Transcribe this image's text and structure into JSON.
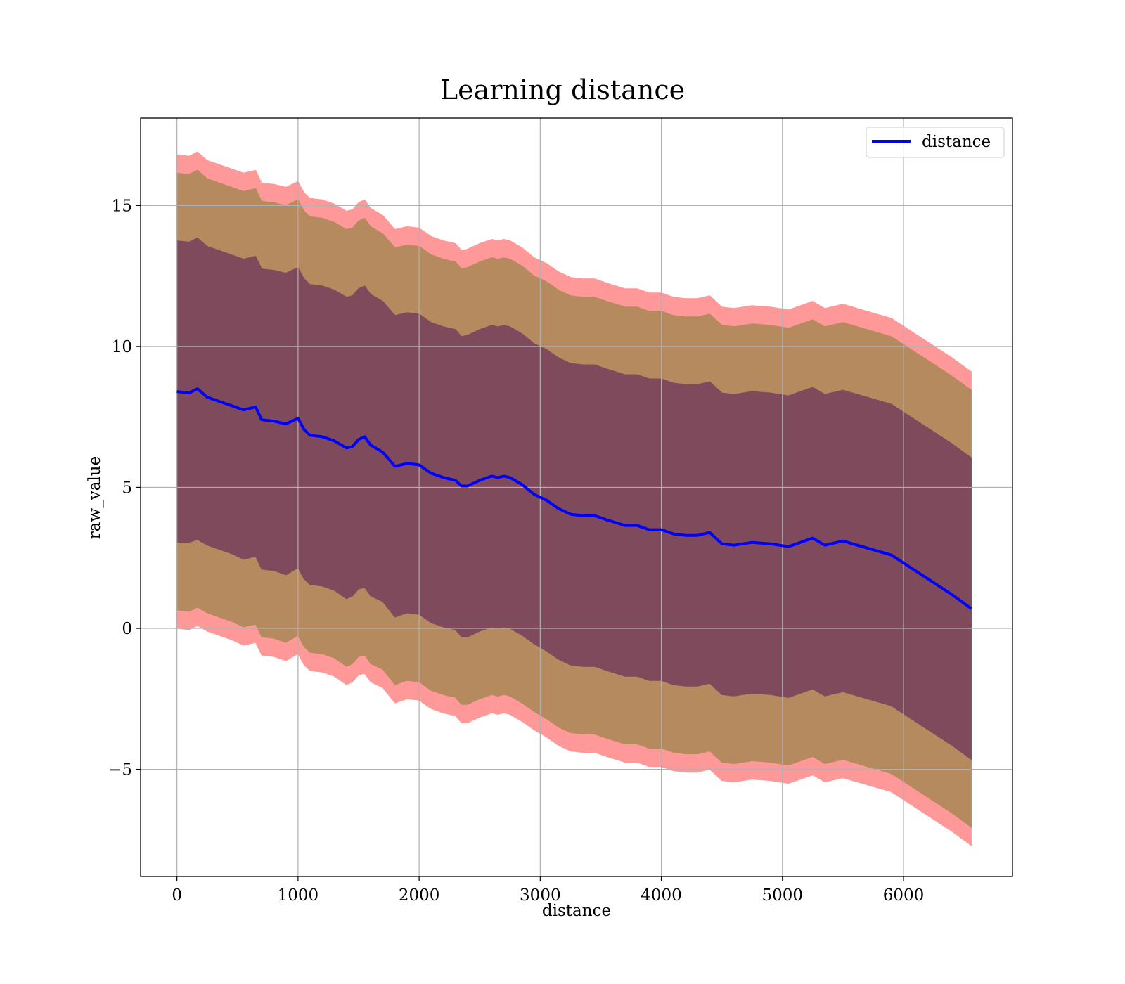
{
  "colors": {
    "line": "#0000ff",
    "band_outer": "#ff9999",
    "band_mid": "#b58a5e",
    "band_inner": "#7f4a5c",
    "grid": "#b0b0b0"
  },
  "chart_data": {
    "type": "line",
    "title": "Learning distance",
    "xlabel": "distance",
    "ylabel": "raw_value",
    "xlim": [
      -300,
      6900
    ],
    "ylim": [
      -8.8,
      18.1
    ],
    "xticks": [
      0,
      1000,
      2000,
      3000,
      4000,
      5000,
      6000
    ],
    "yticks": [
      -5,
      0,
      5,
      10,
      15
    ],
    "xtick_labels": [
      "0",
      "1000",
      "2000",
      "3000",
      "4000",
      "5000",
      "6000"
    ],
    "ytick_labels": [
      "−5",
      "0",
      "5",
      "10",
      "15"
    ],
    "grid": true,
    "legend": {
      "position": "top-right",
      "entries": [
        "distance"
      ]
    },
    "x": [
      0,
      100,
      170,
      250,
      350,
      450,
      550,
      650,
      700,
      800,
      900,
      1000,
      1050,
      1100,
      1200,
      1300,
      1400,
      1450,
      1500,
      1550,
      1600,
      1700,
      1800,
      1900,
      2000,
      2100,
      2200,
      2300,
      2350,
      2400,
      2500,
      2600,
      2650,
      2700,
      2750,
      2850,
      2950,
      3050,
      3150,
      3250,
      3350,
      3450,
      3550,
      3700,
      3800,
      3900,
      4000,
      4100,
      4200,
      4300,
      4400,
      4500,
      4600,
      4750,
      4900,
      5050,
      5250,
      5350,
      5500,
      5700,
      5900,
      6150,
      6400,
      6560
    ],
    "series": [
      {
        "name": "distance",
        "values": [
          8.4,
          8.35,
          8.5,
          8.2,
          8.05,
          7.9,
          7.75,
          7.85,
          7.4,
          7.35,
          7.25,
          7.45,
          7.05,
          6.85,
          6.8,
          6.65,
          6.4,
          6.45,
          6.7,
          6.8,
          6.5,
          6.25,
          5.75,
          5.85,
          5.8,
          5.5,
          5.35,
          5.25,
          5.05,
          5.05,
          5.25,
          5.4,
          5.35,
          5.4,
          5.35,
          5.1,
          4.75,
          4.55,
          4.25,
          4.05,
          4.0,
          4.0,
          3.85,
          3.65,
          3.65,
          3.5,
          3.5,
          3.35,
          3.3,
          3.3,
          3.4,
          3.0,
          2.95,
          3.05,
          3.0,
          2.9,
          3.2,
          2.95,
          3.1,
          2.85,
          2.6,
          1.9,
          1.2,
          0.7
        ]
      },
      {
        "name": "",
        "values": [
          3.05,
          3.05,
          3.15,
          2.95,
          2.8,
          2.65,
          2.45,
          2.55,
          2.1,
          2.05,
          1.9,
          2.15,
          1.75,
          1.55,
          1.5,
          1.35,
          1.05,
          1.15,
          1.4,
          1.45,
          1.15,
          0.95,
          0.4,
          0.55,
          0.5,
          0.2,
          0.05,
          -0.05,
          -0.3,
          -0.3,
          -0.1,
          0.05,
          0.0,
          0.05,
          0.0,
          -0.25,
          -0.55,
          -0.8,
          -1.1,
          -1.3,
          -1.35,
          -1.35,
          -1.5,
          -1.7,
          -1.7,
          -1.85,
          -1.85,
          -2.0,
          -2.05,
          -2.05,
          -1.95,
          -2.35,
          -2.4,
          -2.3,
          -2.35,
          -2.45,
          -2.15,
          -2.4,
          -2.25,
          -2.5,
          -2.75,
          -3.45,
          -4.15,
          -4.65
        ]
      },
      {
        "name": "",
        "values": [
          13.75,
          13.7,
          13.85,
          13.55,
          13.4,
          13.25,
          13.1,
          13.2,
          12.75,
          12.7,
          12.6,
          12.8,
          12.4,
          12.2,
          12.15,
          12.0,
          11.75,
          11.8,
          12.05,
          12.15,
          11.85,
          11.6,
          11.1,
          11.2,
          11.15,
          10.85,
          10.7,
          10.6,
          10.35,
          10.4,
          10.6,
          10.75,
          10.7,
          10.75,
          10.7,
          10.45,
          10.1,
          9.9,
          9.6,
          9.4,
          9.35,
          9.35,
          9.2,
          9.0,
          9.0,
          8.85,
          8.85,
          8.7,
          8.65,
          8.65,
          8.75,
          8.35,
          8.3,
          8.4,
          8.35,
          8.25,
          8.55,
          8.3,
          8.45,
          8.2,
          7.95,
          7.25,
          6.55,
          6.05
        ]
      },
      {
        "name": "",
        "values": [
          0.65,
          0.6,
          0.75,
          0.55,
          0.4,
          0.25,
          0.05,
          0.15,
          -0.3,
          -0.35,
          -0.5,
          -0.25,
          -0.65,
          -0.85,
          -0.9,
          -1.05,
          -1.35,
          -1.25,
          -1.0,
          -0.95,
          -1.25,
          -1.45,
          -2.0,
          -1.85,
          -1.9,
          -2.2,
          -2.35,
          -2.45,
          -2.7,
          -2.7,
          -2.5,
          -2.35,
          -2.4,
          -2.35,
          -2.4,
          -2.65,
          -2.95,
          -3.2,
          -3.5,
          -3.7,
          -3.75,
          -3.75,
          -3.9,
          -4.1,
          -4.1,
          -4.25,
          -4.25,
          -4.4,
          -4.45,
          -4.45,
          -4.35,
          -4.75,
          -4.8,
          -4.7,
          -4.75,
          -4.85,
          -4.55,
          -4.8,
          -4.65,
          -4.9,
          -5.15,
          -5.85,
          -6.55,
          -7.05
        ]
      },
      {
        "name": "",
        "values": [
          16.15,
          16.1,
          16.25,
          15.95,
          15.8,
          15.65,
          15.5,
          15.6,
          15.15,
          15.1,
          15.0,
          15.2,
          14.8,
          14.6,
          14.55,
          14.4,
          14.15,
          14.2,
          14.45,
          14.55,
          14.25,
          14.0,
          13.5,
          13.6,
          13.55,
          13.25,
          13.1,
          13.0,
          12.75,
          12.8,
          13.0,
          13.15,
          13.1,
          13.15,
          13.1,
          12.85,
          12.5,
          12.3,
          12.0,
          11.8,
          11.75,
          11.75,
          11.6,
          11.4,
          11.4,
          11.25,
          11.25,
          11.1,
          11.05,
          11.05,
          11.15,
          10.75,
          10.7,
          10.8,
          10.75,
          10.65,
          10.95,
          10.7,
          10.85,
          10.6,
          10.35,
          9.65,
          8.95,
          8.45
        ]
      },
      {
        "name": "",
        "values": [
          0.0,
          -0.05,
          0.1,
          -0.1,
          -0.25,
          -0.4,
          -0.6,
          -0.5,
          -0.95,
          -1.0,
          -1.15,
          -0.9,
          -1.3,
          -1.5,
          -1.55,
          -1.7,
          -2.0,
          -1.9,
          -1.65,
          -1.6,
          -1.9,
          -2.1,
          -2.65,
          -2.5,
          -2.55,
          -2.85,
          -3.0,
          -3.1,
          -3.35,
          -3.35,
          -3.15,
          -3.0,
          -3.05,
          -3.0,
          -3.05,
          -3.3,
          -3.6,
          -3.85,
          -4.15,
          -4.35,
          -4.4,
          -4.4,
          -4.55,
          -4.75,
          -4.75,
          -4.9,
          -4.9,
          -5.05,
          -5.1,
          -5.1,
          -5.0,
          -5.4,
          -5.45,
          -5.35,
          -5.4,
          -5.5,
          -5.2,
          -5.45,
          -5.3,
          -5.55,
          -5.8,
          -6.5,
          -7.2,
          -7.7
        ]
      },
      {
        "name": "",
        "values": [
          16.8,
          16.75,
          16.9,
          16.6,
          16.45,
          16.3,
          16.15,
          16.25,
          15.8,
          15.75,
          15.65,
          15.85,
          15.45,
          15.25,
          15.2,
          15.05,
          14.8,
          14.85,
          15.1,
          15.2,
          14.9,
          14.65,
          14.15,
          14.25,
          14.2,
          13.9,
          13.75,
          13.65,
          13.4,
          13.45,
          13.65,
          13.8,
          13.75,
          13.8,
          13.75,
          13.5,
          13.15,
          12.95,
          12.65,
          12.45,
          12.4,
          12.4,
          12.25,
          12.05,
          12.05,
          11.9,
          11.9,
          11.75,
          11.7,
          11.7,
          11.8,
          11.4,
          11.35,
          11.45,
          11.4,
          11.3,
          11.6,
          11.35,
          11.5,
          11.25,
          11.0,
          10.3,
          9.6,
          9.1
        ]
      }
    ]
  }
}
